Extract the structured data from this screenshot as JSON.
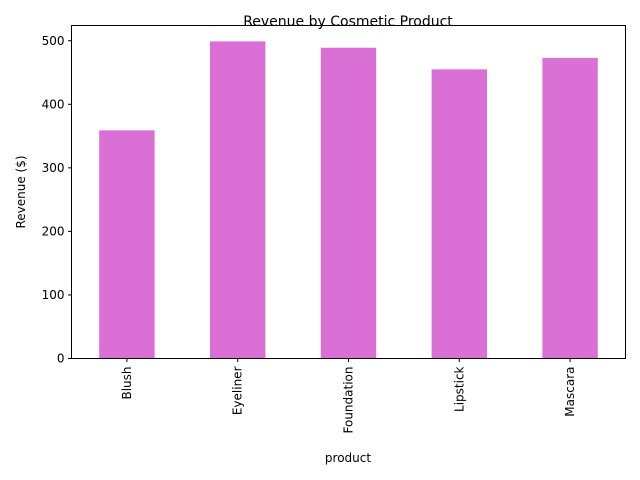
{
  "chart_data": {
    "type": "bar",
    "title": "Revenue by Cosmetic Product",
    "xlabel": "product",
    "ylabel": "Revenue ($)",
    "categories": [
      "Blush",
      "Eyeliner",
      "Foundation",
      "Lipstick",
      "Mascara"
    ],
    "values": [
      359,
      499,
      489,
      455,
      473
    ],
    "ylim": [
      0,
      524
    ],
    "yticks": [
      0,
      100,
      200,
      300,
      400,
      500
    ],
    "bar_color": "#da70d6",
    "grid": false,
    "legend": "none"
  }
}
